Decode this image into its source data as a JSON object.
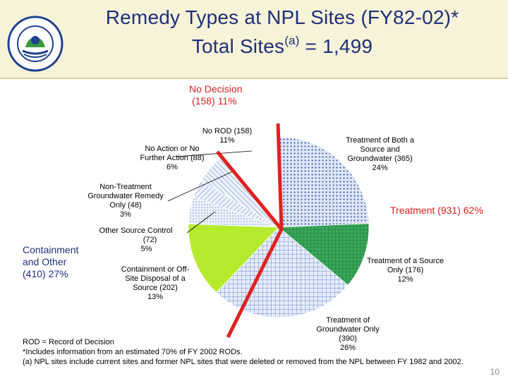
{
  "header": {
    "title_line1": "Remedy Types at NPL Sites (FY82-02)*",
    "title_line2_pre": "Total Sites",
    "title_line2_sup": "(a)",
    "title_line2_post": " = 1,499",
    "logo_text": "UNITED STATES ENVIRONMENTAL PROTECTION AGENCY"
  },
  "groups": {
    "no_decision": {
      "line1": "No Decision",
      "line2": "(158) 11%"
    },
    "treatment": {
      "line1": "Treatment (931) 62%"
    },
    "containment": {
      "line1": "Containment",
      "line2": "and Other",
      "line3": "(410) 27%"
    }
  },
  "chart_data": {
    "type": "pie",
    "title": "Remedy Types at NPL Sites (FY82-02)*",
    "total": 1499,
    "slices": [
      {
        "name": "Treatment of Both a Source and Groundwater",
        "count": 365,
        "percent": 24,
        "label_l1": "Treatment of Both a",
        "label_l2": "Source and",
        "label_l3": "Groundwater (365)",
        "label_l4": "24%",
        "fill": "#c9d4ec",
        "pattern": "dots-blue"
      },
      {
        "name": "Treatment of a Source Only",
        "count": 176,
        "percent": 12,
        "label_l1": "Treatment of a Source",
        "label_l2": "Only (176)",
        "label_l3": "12%",
        "fill": "#2e9f4f",
        "pattern": "grid-green"
      },
      {
        "name": "Treatment of Groundwater Only",
        "count": 390,
        "percent": 26,
        "label_l1": "Treatment of",
        "label_l2": "Groundwater Only",
        "label_l3": "(390)",
        "label_l4": "26%",
        "fill": "#cfdcf3",
        "pattern": "grid-blue"
      },
      {
        "name": "Containment or Off-Site Disposal of a Source",
        "count": 202,
        "percent": 13,
        "label_l1": "Containment or Off-",
        "label_l2": "Site Disposal of a",
        "label_l3": "Source (202)",
        "label_l4": "13%",
        "fill": "#b6ea2c",
        "pattern": "solid-lime"
      },
      {
        "name": "Other Source Control",
        "count": 72,
        "percent": 5,
        "label_l1": "Other Source Control",
        "label_l2": "(72)",
        "label_l3": "5%",
        "fill": "#dbe8f7",
        "pattern": "dots-light"
      },
      {
        "name": "Non-Treatment Groundwater Remedy Only",
        "count": 48,
        "percent": 3,
        "label_l1": "Non-Treatment",
        "label_l2": "Groundwater Remedy",
        "label_l3": "Only (48)",
        "label_l4": "3%",
        "fill": "#dde6f4",
        "pattern": "hatch-left"
      },
      {
        "name": "No Action or No Further Action",
        "count": 88,
        "percent": 6,
        "label_l1": "No Action or No",
        "label_l2": "Further Action (88)",
        "label_l3": "6%",
        "fill": "#d2dff4",
        "pattern": "hatch-right"
      },
      {
        "name": "No ROD",
        "count": 158,
        "percent": 11,
        "label_l1": "No ROD (158)",
        "label_l2": "11%",
        "fill": "#ffffff",
        "pattern": "none"
      }
    ],
    "separator_color": "#e02020",
    "legend": "none"
  },
  "notes": {
    "rod": "ROD = Record of Decision",
    "fy": "*Includes information from an estimated 70% of FY 2002 RODs.",
    "a": "(a) NPL sites include current sites and former NPL sites that were deleted or removed from the NPL between FY 1982 and 2002."
  },
  "page_number": "10"
}
